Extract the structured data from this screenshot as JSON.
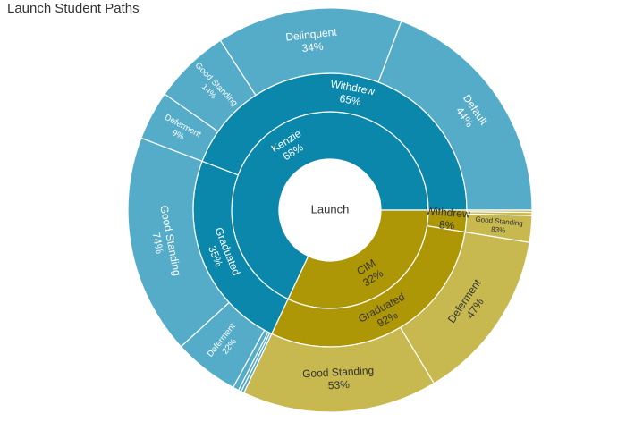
{
  "chart_data": {
    "type": "sunburst",
    "title": "Launch Student Paths",
    "root": {
      "label": "Launch"
    },
    "colors": {
      "kenzie_inner": "#0a87ab",
      "kenzie_outer": "#55acc8",
      "cim_inner": "#ae9706",
      "cim_outer": "#c7b94f",
      "root": "#ffffff"
    },
    "children": [
      {
        "label": "Kenzie",
        "percent": 68,
        "display": "68%",
        "color": "kenzie_inner",
        "children": [
          {
            "label": "Withdrew",
            "percent": 65,
            "display": "65%",
            "color": "kenzie_inner",
            "children": [
              {
                "label": "Default",
                "percent": 44,
                "display": "44%",
                "color": "kenzie_outer"
              },
              {
                "label": "Delinquent",
                "percent": 34,
                "display": "34%",
                "color": "kenzie_outer"
              },
              {
                "label": "Good Standing",
                "percent": 14,
                "display": "14%",
                "color": "kenzie_outer"
              },
              {
                "label": "Deferment",
                "percent": 9,
                "display": "9%",
                "color": "kenzie_outer"
              }
            ]
          },
          {
            "label": "Graduated",
            "percent": 35,
            "display": "35%",
            "color": "kenzie_inner",
            "children": [
              {
                "label": "Good Standing",
                "percent": 74,
                "display": "74%",
                "color": "kenzie_outer"
              },
              {
                "label": "Deferment",
                "percent": 22,
                "display": "22%",
                "color": "kenzie_outer"
              },
              {
                "label": "",
                "percent": 2,
                "display": "",
                "color": "kenzie_outer"
              },
              {
                "label": "",
                "percent": 1,
                "display": "",
                "color": "kenzie_outer"
              },
              {
                "label": "",
                "percent": 1,
                "display": "",
                "color": "kenzie_outer"
              }
            ]
          }
        ]
      },
      {
        "label": "CIM",
        "percent": 32,
        "display": "32%",
        "color": "cim_inner",
        "children": [
          {
            "label": "Graduated",
            "percent": 92,
            "display": "92%",
            "color": "cim_inner",
            "children": [
              {
                "label": "Good Standing",
                "percent": 53,
                "display": "53%",
                "color": "cim_outer"
              },
              {
                "label": "Deferment",
                "percent": 47,
                "display": "47%",
                "color": "cim_outer"
              }
            ]
          },
          {
            "label": "Withdrew",
            "percent": 8,
            "display": "8%",
            "color": "cim_inner",
            "children": [
              {
                "label": "Good Standing",
                "percent": 83,
                "display": "83%",
                "color": "cim_outer"
              },
              {
                "label": "",
                "percent": 10,
                "display": "",
                "color": "cim_outer"
              },
              {
                "label": "",
                "percent": 7,
                "display": "",
                "color": "cim_outer"
              }
            ]
          }
        ]
      }
    ]
  }
}
